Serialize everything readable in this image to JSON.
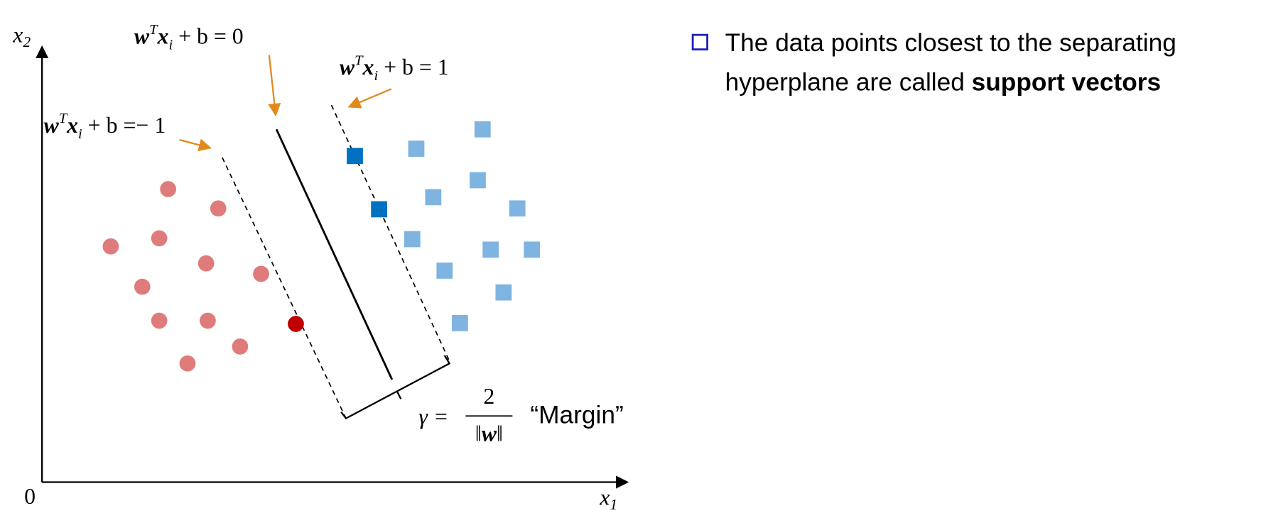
{
  "axes": {
    "y_label": [
      "x",
      "2"
    ],
    "x_label": [
      "x",
      "1"
    ],
    "origin": "0"
  },
  "annotations": {
    "hyperplane": [
      "w",
      "T",
      "x",
      "i",
      " + b = 0"
    ],
    "positive_margin": [
      "w",
      "T",
      "x",
      "i",
      " + b = 1"
    ],
    "negative_margin": [
      "w",
      "T",
      "x",
      "i",
      " + b =− 1"
    ],
    "margin_formula": {
      "lhs": "γ =",
      "numerator": "2",
      "denominator": [
        "‖",
        "w",
        "‖"
      ]
    },
    "margin_label": "“Margin”"
  },
  "bullet": {
    "line1": "The data points closest to the separating",
    "line2": "hyperplane are called ",
    "bold": "support vectors"
  }
}
